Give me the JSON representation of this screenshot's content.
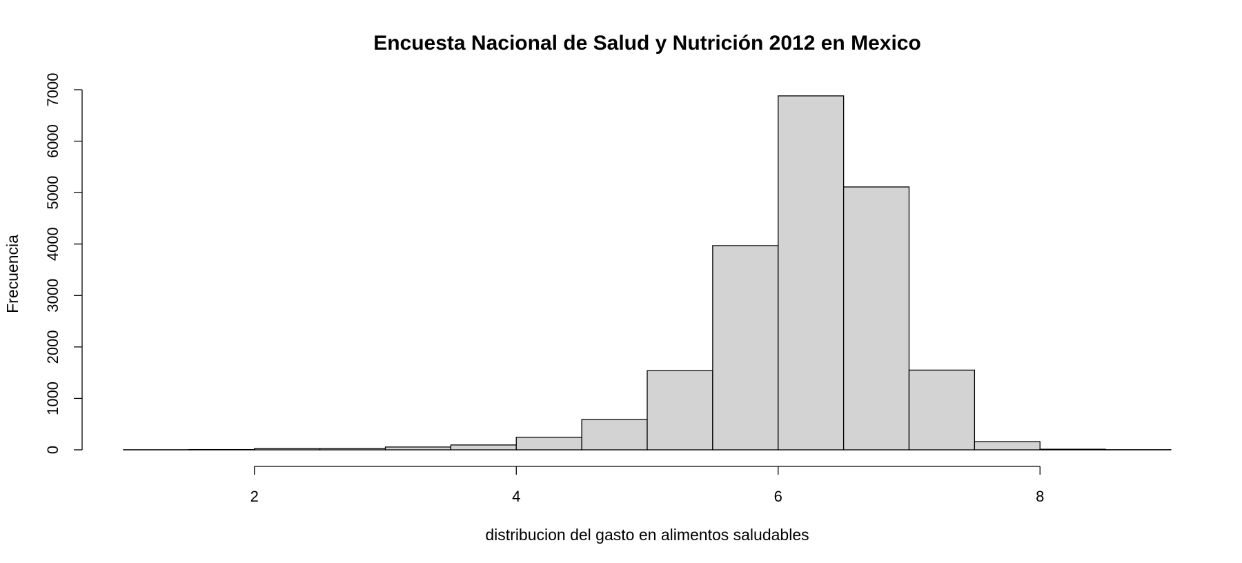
{
  "chart_data": {
    "type": "bar",
    "title": "Encuesta Nacional de Salud y Nutrición 2012 en Mexico",
    "xlabel": "distribucion del gasto en alimentos saludables",
    "ylabel": "Frecuencia",
    "bin_width": 0.5,
    "bins": [
      {
        "start": 1.0,
        "end": 1.5,
        "count": 2
      },
      {
        "start": 1.5,
        "end": 2.0,
        "count": 5
      },
      {
        "start": 2.0,
        "end": 2.5,
        "count": 25
      },
      {
        "start": 2.5,
        "end": 3.0,
        "count": 25
      },
      {
        "start": 3.0,
        "end": 3.5,
        "count": 55
      },
      {
        "start": 3.5,
        "end": 4.0,
        "count": 95
      },
      {
        "start": 4.0,
        "end": 4.5,
        "count": 245
      },
      {
        "start": 4.5,
        "end": 5.0,
        "count": 590
      },
      {
        "start": 5.0,
        "end": 5.5,
        "count": 1540
      },
      {
        "start": 5.5,
        "end": 6.0,
        "count": 3970
      },
      {
        "start": 6.0,
        "end": 6.5,
        "count": 6880
      },
      {
        "start": 6.5,
        "end": 7.0,
        "count": 5110
      },
      {
        "start": 7.0,
        "end": 7.5,
        "count": 1550
      },
      {
        "start": 7.5,
        "end": 8.0,
        "count": 160
      },
      {
        "start": 8.0,
        "end": 8.5,
        "count": 12
      },
      {
        "start": 8.5,
        "end": 9.0,
        "count": 3
      }
    ],
    "xlim": [
      1,
      9
    ],
    "ylim": [
      0,
      7000
    ],
    "x_ticks": [
      2,
      4,
      6,
      8
    ],
    "y_ticks": [
      0,
      1000,
      2000,
      3000,
      4000,
      5000,
      6000,
      7000
    ],
    "grid": false,
    "bar_color": "#d3d3d3"
  }
}
